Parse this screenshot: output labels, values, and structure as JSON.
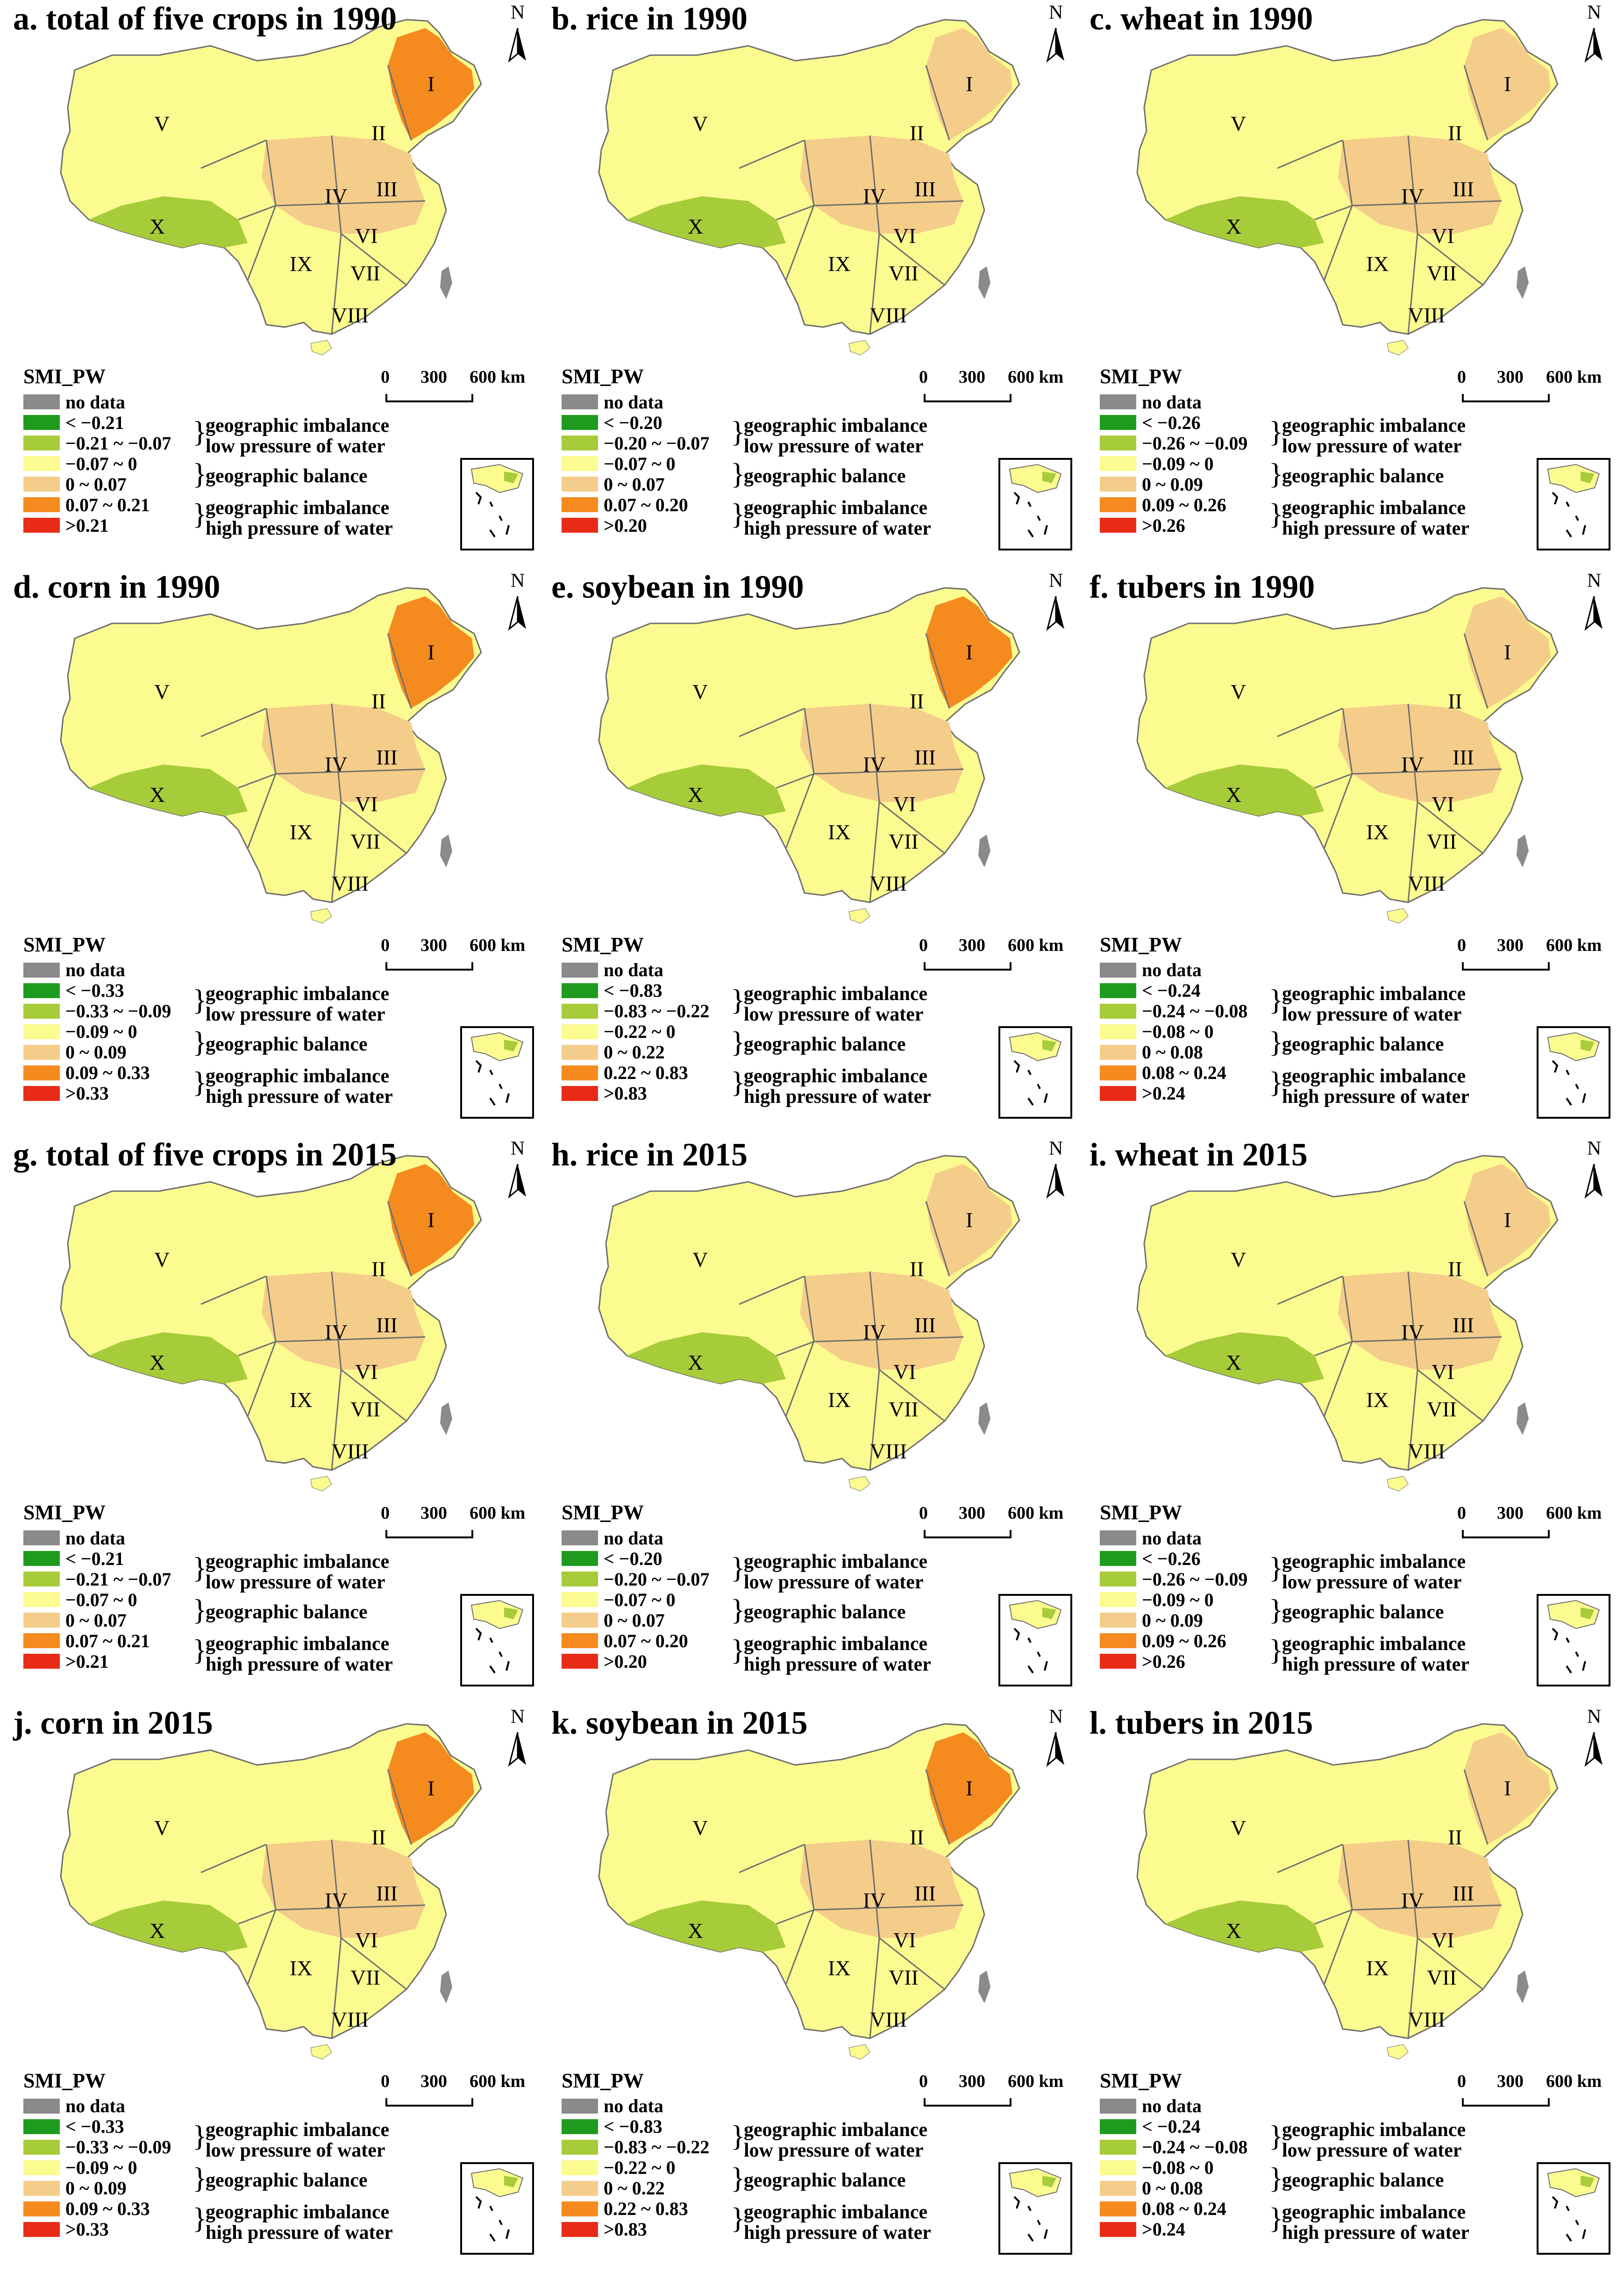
{
  "colors": {
    "no_data": "#8a8a8a",
    "low_high": "#1f9b1f",
    "low": "#a7cc3a",
    "balance_low": "#fbfb90",
    "balance_high": "#f5cd8a",
    "high": "#f58a1f",
    "high_high": "#e82b17",
    "boundary": "#6f6f6f"
  },
  "legend_common": {
    "title": "SMI_PW",
    "no_data": "no data",
    "imbalance": "geographic imbalance",
    "low_pressure": "low pressure of water",
    "balance": "geographic balance",
    "high_pressure": "high pressure of water"
  },
  "scale_bar": {
    "zero": "0",
    "mid": "300",
    "end": "600 km"
  },
  "north": "N",
  "regions": [
    "I",
    "II",
    "III",
    "IV",
    "V",
    "VI",
    "VII",
    "VIII",
    "IX",
    "X"
  ],
  "panels": [
    {
      "title": "a. total of five crops in 1990",
      "ranges": [
        "< −0.21",
        "−0.21 ~ −0.07",
        "−0.07 ~ 0",
        "0 ~ 0.07",
        "0.07 ~ 0.21",
        ">0.21"
      ]
    },
    {
      "title": "b. rice in 1990",
      "ranges": [
        "< −0.20",
        "−0.20 ~ −0.07",
        "−0.07 ~ 0",
        "0 ~ 0.07",
        "0.07 ~ 0.20",
        ">0.20"
      ]
    },
    {
      "title": "c. wheat in 1990",
      "ranges": [
        "< −0.26",
        "−0.26 ~ −0.09",
        "−0.09 ~ 0",
        "0 ~ 0.09",
        "0.09 ~ 0.26",
        ">0.26"
      ]
    },
    {
      "title": "d. corn in 1990",
      "ranges": [
        "< −0.33",
        "−0.33 ~ −0.09",
        "−0.09 ~ 0",
        "0 ~ 0.09",
        "0.09 ~ 0.33",
        ">0.33"
      ]
    },
    {
      "title": "e. soybean in 1990",
      "ranges": [
        "< −0.83",
        "−0.83 ~ −0.22",
        "−0.22 ~ 0",
        "0 ~ 0.22",
        "0.22 ~ 0.83",
        ">0.83"
      ]
    },
    {
      "title": "f. tubers in 1990",
      "ranges": [
        "< −0.24",
        "−0.24 ~ −0.08",
        "−0.08 ~ 0",
        "0 ~ 0.08",
        "0.08 ~ 0.24",
        ">0.24"
      ]
    },
    {
      "title": "g. total of five crops in 2015",
      "ranges": [
        "< −0.21",
        "−0.21 ~ −0.07",
        "−0.07 ~ 0",
        "0 ~ 0.07",
        "0.07 ~ 0.21",
        ">0.21"
      ]
    },
    {
      "title": "h. rice in 2015",
      "ranges": [
        "< −0.20",
        "−0.20 ~ −0.07",
        "−0.07 ~ 0",
        "0 ~ 0.07",
        "0.07 ~ 0.20",
        ">0.20"
      ]
    },
    {
      "title": "i. wheat in 2015",
      "ranges": [
        "< −0.26",
        "−0.26 ~ −0.09",
        "−0.09 ~ 0",
        "0 ~ 0.09",
        "0.09 ~ 0.26",
        ">0.26"
      ]
    },
    {
      "title": "j. corn in 2015",
      "ranges": [
        "< −0.33",
        "−0.33 ~ −0.09",
        "−0.09 ~ 0",
        "0 ~ 0.09",
        "0.09 ~ 0.33",
        ">0.33"
      ]
    },
    {
      "title": "k. soybean in 2015",
      "ranges": [
        "< −0.83",
        "−0.83 ~ −0.22",
        "−0.22 ~ 0",
        "0 ~ 0.22",
        "0.22 ~ 0.83",
        ">0.83"
      ]
    },
    {
      "title": "l. tubers in 2015",
      "ranges": [
        "< −0.24",
        "−0.24 ~ −0.08",
        "−0.08 ~ 0",
        "0 ~ 0.08",
        "0.08 ~ 0.24",
        ">0.24"
      ]
    }
  ]
}
